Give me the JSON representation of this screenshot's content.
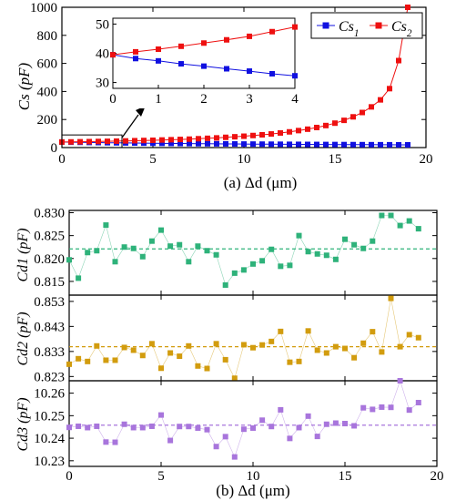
{
  "chart_data": [
    {
      "type": "line",
      "panel_label": "(a) Δd (μm)",
      "ylabel": "Cs (pF)",
      "xlim": [
        0,
        20
      ],
      "ylim": [
        0,
        1000
      ],
      "xticks": [
        0,
        5,
        10,
        15,
        20
      ],
      "yticks": [
        0,
        200,
        400,
        600,
        800,
        1000
      ],
      "legend": [
        "Cs1",
        "Cs2"
      ],
      "legend_position": "top-right",
      "x": [
        0,
        0.5,
        1,
        1.5,
        2,
        2.5,
        3,
        3.5,
        4,
        4.5,
        5,
        5.5,
        6,
        6.5,
        7,
        7.5,
        8,
        8.5,
        9,
        9.5,
        10,
        10.5,
        11,
        11.5,
        12,
        12.5,
        13,
        13.5,
        14,
        14.5,
        15,
        15.5,
        16,
        16.5,
        17,
        17.5,
        18,
        18.5,
        19
      ],
      "series": [
        {
          "name": "Cs1",
          "color": "#1010e0",
          "values": [
            39.5,
            38.2,
            37.4,
            36.4,
            35.6,
            34.7,
            33.9,
            33.0,
            32.3,
            31.5,
            30.8,
            30.1,
            29.5,
            28.9,
            28.3,
            27.7,
            27.2,
            26.7,
            26.2,
            25.8,
            25.3,
            24.9,
            24.5,
            24.1,
            23.7,
            23.3,
            23.0,
            22.6,
            22.3,
            22.0,
            21.7,
            21.4,
            21.1,
            20.8,
            20.6,
            20.3,
            20.1,
            19.8,
            19.6
          ]
        },
        {
          "name": "Cs2",
          "color": "#ee1010",
          "values": [
            39.5,
            40.5,
            41.4,
            42.4,
            43.5,
            44.6,
            45.8,
            47.4,
            49.0,
            50.5,
            52,
            54,
            56,
            58,
            60,
            63,
            66,
            69,
            73,
            77,
            81,
            86,
            91,
            97,
            104,
            112,
            121,
            131,
            143,
            157,
            174,
            194,
            219,
            250,
            290,
            340,
            420,
            620,
            1000
          ]
        }
      ]
    },
    {
      "type": "line",
      "inset_of": "Cs",
      "xlim": [
        0,
        4
      ],
      "ylim": [
        28,
        52
      ],
      "xticks": [
        0,
        1,
        2,
        3,
        4
      ],
      "yticks": [
        30,
        40,
        50
      ],
      "x": [
        0,
        0.5,
        1,
        1.5,
        2,
        2.5,
        3,
        3.5,
        4
      ],
      "series": [
        {
          "name": "Cs1",
          "color": "#1010e0",
          "values": [
            39.5,
            38.2,
            37.4,
            36.4,
            35.6,
            34.7,
            33.9,
            33.0,
            32.3
          ]
        },
        {
          "name": "Cs2",
          "color": "#ee1010",
          "values": [
            39.5,
            40.5,
            41.4,
            42.4,
            43.5,
            44.6,
            45.8,
            47.4,
            49.0
          ]
        }
      ]
    },
    {
      "type": "scatter",
      "panel_label": "(b) Δd (μm)",
      "xlim": [
        0,
        20
      ],
      "xticks": [
        0,
        5,
        10,
        15,
        20
      ],
      "x": [
        0,
        0.5,
        1,
        1.5,
        2,
        2.5,
        3,
        3.5,
        4,
        4.5,
        5,
        5.5,
        6,
        6.5,
        7,
        7.5,
        8,
        8.5,
        9,
        9.5,
        10,
        10.5,
        11,
        11.5,
        12,
        12.5,
        13,
        13.5,
        14,
        14.5,
        15,
        15.5,
        16,
        16.5,
        17,
        17.5,
        18,
        18.5,
        19
      ],
      "subplots": [
        {
          "ylabel": "Cd1 (pF)",
          "color": "#2eb27a",
          "ylim": [
            0.812,
            0.8305
          ],
          "yticks": [
            "0.815",
            "0.820",
            "0.825",
            "0.830"
          ],
          "mean": 0.8221,
          "values": [
            0.8197,
            0.8157,
            0.8213,
            0.8217,
            0.8273,
            0.8193,
            0.8225,
            0.8222,
            0.8204,
            0.8238,
            0.8262,
            0.8227,
            0.823,
            0.8193,
            0.8227,
            0.8217,
            0.8208,
            0.8142,
            0.8168,
            0.8175,
            0.8188,
            0.8195,
            0.822,
            0.8183,
            0.8185,
            0.825,
            0.8215,
            0.821,
            0.8207,
            0.8198,
            0.8242,
            0.823,
            0.8222,
            0.8238,
            0.8294,
            0.8294,
            0.8272,
            0.8282,
            0.8265
          ]
        },
        {
          "ylabel": "Cd2 (pF)",
          "color": "#d29c0e",
          "ylim": [
            0.8213,
            0.8555
          ],
          "yticks": [
            "0.823",
            "0.833",
            "0.843",
            "0.853"
          ],
          "mean": 0.8349,
          "values": [
            0.8279,
            0.8301,
            0.829,
            0.8352,
            0.8295,
            0.8295,
            0.8346,
            0.8335,
            0.8314,
            0.8361,
            0.8263,
            0.8324,
            0.8311,
            0.8352,
            0.8272,
            0.8262,
            0.8361,
            0.8297,
            0.8223,
            0.8357,
            0.8345,
            0.8356,
            0.837,
            0.841,
            0.8287,
            0.829,
            0.8412,
            0.8335,
            0.8324,
            0.8349,
            0.8342,
            0.8305,
            0.8363,
            0.8409,
            0.8328,
            0.8542,
            0.8349,
            0.8397,
            0.8385
          ]
        },
        {
          "ylabel": "Cd3 (pF)",
          "color": "#a875dc",
          "ylim": [
            10.2275,
            10.2655
          ],
          "yticks": [
            "10.23",
            "10.24",
            "10.25",
            "10.26"
          ],
          "mean": 10.2458,
          "values": [
            10.2448,
            10.2453,
            10.2447,
            10.2453,
            10.2383,
            10.2382,
            10.2462,
            10.2447,
            10.2447,
            10.2453,
            10.2503,
            10.239,
            10.2452,
            10.2452,
            10.2445,
            10.2438,
            10.2363,
            10.2407,
            10.2317,
            10.244,
            10.2445,
            10.248,
            10.2452,
            10.2526,
            10.2399,
            10.2447,
            10.2498,
            10.2408,
            10.2462,
            10.2467,
            10.2465,
            10.2455,
            10.2535,
            10.2528,
            10.2538,
            10.2537,
            10.2655,
            10.2525,
            10.2558
          ]
        }
      ]
    }
  ]
}
